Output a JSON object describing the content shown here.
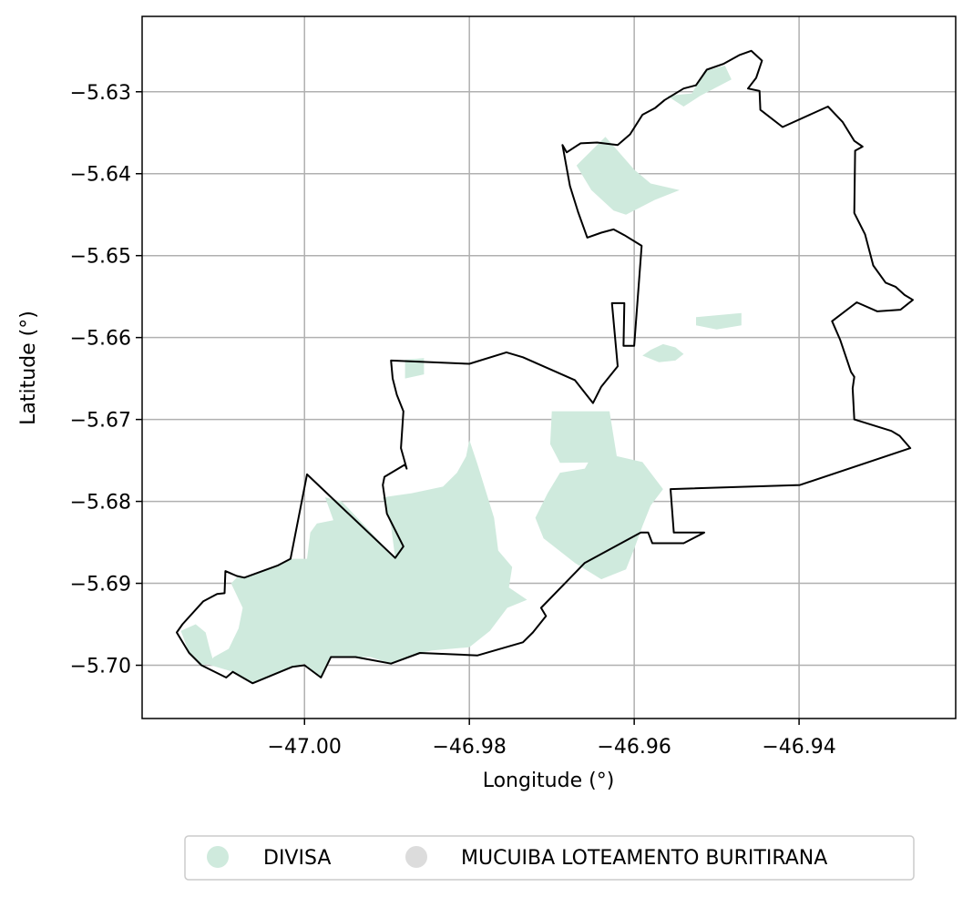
{
  "map": {
    "xlabel": "Longitude (°)",
    "ylabel": "Latitude (°)",
    "x_ticks": [
      {
        "value": -47.0,
        "label": "−47.00"
      },
      {
        "value": -46.98,
        "label": "−46.98"
      },
      {
        "value": -46.96,
        "label": "−46.96"
      },
      {
        "value": -46.94,
        "label": "−46.94"
      }
    ],
    "y_ticks": [
      {
        "value": -5.63,
        "label": "−5.63"
      },
      {
        "value": -5.64,
        "label": "−5.64"
      },
      {
        "value": -5.65,
        "label": "−5.65"
      },
      {
        "value": -5.66,
        "label": "−5.66"
      },
      {
        "value": -5.67,
        "label": "−5.67"
      },
      {
        "value": -5.68,
        "label": "−5.68"
      },
      {
        "value": -5.69,
        "label": "−5.69"
      },
      {
        "value": -5.7,
        "label": "−5.70"
      }
    ],
    "xlim": [
      -47.0197,
      -46.921
    ],
    "ylim": [
      -5.7065,
      -5.6208
    ],
    "grid": true,
    "legend": {
      "placement": "bottom-center",
      "entries": [
        {
          "label": "DIVISA",
          "color": "#cfeadd"
        },
        {
          "label": "MUCUIBA LOTEAMENTO BURITIRANA",
          "color": "#dcdcdc"
        }
      ]
    },
    "colors": {
      "boundary": "#000000",
      "divisa_fill": "#cfeadd",
      "grid": "#b0b0b0"
    },
    "boundary": [
      [
        -46.9458,
        -5.625
      ],
      [
        -46.9445,
        -5.6262
      ],
      [
        -46.9452,
        -5.6283
      ],
      [
        -46.9462,
        -5.6296
      ],
      [
        -46.9448,
        -5.6299
      ],
      [
        -46.9447,
        -5.6322
      ],
      [
        -46.942,
        -5.6343
      ],
      [
        -46.9365,
        -5.6318
      ],
      [
        -46.9347,
        -5.6337
      ],
      [
        -46.9333,
        -5.636
      ],
      [
        -46.9323,
        -5.6367
      ],
      [
        -46.9332,
        -5.6372
      ],
      [
        -46.9333,
        -5.6448
      ],
      [
        -46.932,
        -5.6474
      ],
      [
        -46.931,
        -5.6512
      ],
      [
        -46.9295,
        -5.6533
      ],
      [
        -46.9283,
        -5.6538
      ],
      [
        -46.9272,
        -5.6548
      ],
      [
        -46.9262,
        -5.6554
      ],
      [
        -46.9277,
        -5.6566
      ],
      [
        -46.9305,
        -5.6568
      ],
      [
        -46.933,
        -5.6557
      ],
      [
        -46.936,
        -5.658
      ],
      [
        -46.935,
        -5.6603
      ],
      [
        -46.9337,
        -5.6642
      ],
      [
        -46.9333,
        -5.6648
      ],
      [
        -46.9335,
        -5.6662
      ],
      [
        -46.9333,
        -5.67
      ],
      [
        -46.9288,
        -5.6714
      ],
      [
        -46.9278,
        -5.672
      ],
      [
        -46.9265,
        -5.6735
      ],
      [
        -46.9399,
        -5.678
      ],
      [
        -46.9556,
        -5.6785
      ],
      [
        -46.9552,
        -5.6838
      ],
      [
        -46.9515,
        -5.6838
      ],
      [
        -46.954,
        -5.6851
      ],
      [
        -46.9578,
        -5.6851
      ],
      [
        -46.9583,
        -5.6838
      ],
      [
        -46.9592,
        -5.6838
      ],
      [
        -46.966,
        -5.6875
      ],
      [
        -46.9713,
        -5.693
      ],
      [
        -46.9707,
        -5.694
      ],
      [
        -46.9723,
        -5.696
      ],
      [
        -46.9735,
        -5.6972
      ],
      [
        -46.979,
        -5.6988
      ],
      [
        -46.986,
        -5.6985
      ],
      [
        -46.9895,
        -5.6998
      ],
      [
        -46.9938,
        -5.699
      ],
      [
        -46.9968,
        -5.699
      ],
      [
        -46.998,
        -5.7015
      ],
      [
        -47.0,
        -5.7
      ],
      [
        -47.0015,
        -5.7002
      ],
      [
        -47.0063,
        -5.7022
      ],
      [
        -47.0087,
        -5.7008
      ],
      [
        -47.0095,
        -5.7015
      ],
      [
        -47.0125,
        -5.7
      ],
      [
        -47.014,
        -5.6985
      ],
      [
        -47.0155,
        -5.696
      ],
      [
        -47.0148,
        -5.695
      ],
      [
        -47.0123,
        -5.6922
      ],
      [
        -47.0106,
        -5.6913
      ],
      [
        -47.0097,
        -5.6912
      ],
      [
        -47.0096,
        -5.6885
      ],
      [
        -47.0082,
        -5.6891
      ],
      [
        -47.0073,
        -5.6893
      ],
      [
        -47.0032,
        -5.6878
      ],
      [
        -47.0017,
        -5.687
      ],
      [
        -46.9997,
        -5.6767
      ],
      [
        -46.989,
        -5.6869
      ],
      [
        -46.988,
        -5.6855
      ],
      [
        -46.99,
        -5.6815
      ],
      [
        -46.9905,
        -5.678
      ],
      [
        -46.9903,
        -5.677
      ],
      [
        -46.9878,
        -5.6755
      ],
      [
        -46.9876,
        -5.676
      ],
      [
        -46.9883,
        -5.6735
      ],
      [
        -46.988,
        -5.669
      ],
      [
        -46.9888,
        -5.667
      ],
      [
        -46.9893,
        -5.665
      ],
      [
        -46.9895,
        -5.6628
      ],
      [
        -46.98,
        -5.6632
      ],
      [
        -46.9755,
        -5.6618
      ],
      [
        -46.9735,
        -5.6624
      ],
      [
        -46.9672,
        -5.6652
      ],
      [
        -46.965,
        -5.668
      ],
      [
        -46.964,
        -5.666
      ],
      [
        -46.962,
        -5.6635
      ],
      [
        -46.9627,
        -5.6558
      ],
      [
        -46.9612,
        -5.6558
      ],
      [
        -46.9613,
        -5.661
      ],
      [
        -46.96,
        -5.661
      ],
      [
        -46.9591,
        -5.6488
      ],
      [
        -46.9612,
        -5.6475
      ],
      [
        -46.9625,
        -5.6468
      ],
      [
        -46.964,
        -5.6472
      ],
      [
        -46.9657,
        -5.6478
      ],
      [
        -46.9668,
        -5.6447
      ],
      [
        -46.9678,
        -5.6415
      ],
      [
        -46.9687,
        -5.6365
      ],
      [
        -46.9682,
        -5.6374
      ],
      [
        -46.9665,
        -5.6363
      ],
      [
        -46.9645,
        -5.6362
      ],
      [
        -46.962,
        -5.6365
      ],
      [
        -46.9605,
        -5.6352
      ],
      [
        -46.959,
        -5.6328
      ],
      [
        -46.9575,
        -5.632
      ],
      [
        -46.9563,
        -5.631
      ],
      [
        -46.954,
        -5.6296
      ],
      [
        -46.9525,
        -5.6292
      ],
      [
        -46.9512,
        -5.6273
      ],
      [
        -46.9492,
        -5.6266
      ],
      [
        -46.9472,
        -5.6255
      ],
      [
        -46.9458,
        -5.625
      ]
    ],
    "divisa": [
      [
        [
          -47.0117,
          -5.6999
        ],
        [
          -47.0087,
          -5.7008
        ],
        [
          -47.0063,
          -5.7022
        ],
        [
          -47.0015,
          -5.7002
        ],
        [
          -47.0,
          -5.6998
        ],
        [
          -46.998,
          -5.7015
        ],
        [
          -46.9968,
          -5.699
        ],
        [
          -46.992,
          -5.699
        ],
        [
          -46.9895,
          -5.6998
        ],
        [
          -46.986,
          -5.6985
        ],
        [
          -46.9845,
          -5.6982
        ],
        [
          -46.98,
          -5.6978
        ],
        [
          -46.9775,
          -5.6958
        ],
        [
          -46.9754,
          -5.693
        ],
        [
          -46.973,
          -5.692
        ],
        [
          -46.9752,
          -5.6905
        ],
        [
          -46.9748,
          -5.688
        ],
        [
          -46.9765,
          -5.686
        ],
        [
          -46.977,
          -5.682
        ],
        [
          -46.979,
          -5.6755
        ],
        [
          -46.98,
          -5.6725
        ],
        [
          -46.9804,
          -5.6745
        ],
        [
          -46.9815,
          -5.6765
        ],
        [
          -46.9832,
          -5.6782
        ],
        [
          -46.987,
          -5.679
        ],
        [
          -46.9905,
          -5.6795
        ],
        [
          -46.9895,
          -5.683
        ],
        [
          -46.989,
          -5.6869
        ],
        [
          -46.9955,
          -5.68
        ],
        [
          -46.9975,
          -5.6795
        ],
        [
          -46.9965,
          -5.6823
        ],
        [
          -46.9985,
          -5.6827
        ],
        [
          -46.9993,
          -5.6838
        ],
        [
          -46.9997,
          -5.687
        ],
        [
          -47.0017,
          -5.687
        ],
        [
          -47.0032,
          -5.6878
        ],
        [
          -47.0073,
          -5.6893
        ],
        [
          -47.0082,
          -5.6893
        ],
        [
          -47.0089,
          -5.69
        ],
        [
          -47.0075,
          -5.693
        ],
        [
          -47.008,
          -5.6955
        ],
        [
          -47.0092,
          -5.698
        ],
        [
          -47.011,
          -5.699
        ]
      ],
      [
        [
          -47.015,
          -5.6958
        ],
        [
          -47.014,
          -5.6985
        ],
        [
          -47.0125,
          -5.7
        ],
        [
          -47.011,
          -5.6997
        ],
        [
          -47.0115,
          -5.698
        ],
        [
          -47.012,
          -5.696
        ],
        [
          -47.0132,
          -5.695
        ]
      ],
      [
        [
          -46.971,
          -5.6845
        ],
        [
          -46.9672,
          -5.6875
        ],
        [
          -46.964,
          -5.6895
        ],
        [
          -46.961,
          -5.6883
        ],
        [
          -46.96,
          -5.6858
        ],
        [
          -46.959,
          -5.683
        ],
        [
          -46.958,
          -5.6805
        ],
        [
          -46.9565,
          -5.6785
        ],
        [
          -46.959,
          -5.6752
        ],
        [
          -46.962,
          -5.6745
        ],
        [
          -46.965,
          -5.6742
        ],
        [
          -46.966,
          -5.676
        ],
        [
          -46.969,
          -5.6765
        ],
        [
          -46.9705,
          -5.679
        ],
        [
          -46.972,
          -5.682
        ]
      ],
      [
        [
          -46.963,
          -5.669
        ],
        [
          -46.962,
          -5.6752
        ],
        [
          -46.969,
          -5.6753
        ],
        [
          -46.9702,
          -5.673
        ],
        [
          -46.97,
          -5.669
        ]
      ],
      [
        [
          -46.967,
          -5.639
        ],
        [
          -46.9652,
          -5.642
        ],
        [
          -46.9625,
          -5.6445
        ],
        [
          -46.961,
          -5.645
        ],
        [
          -46.9575,
          -5.6432
        ],
        [
          -46.9545,
          -5.642
        ],
        [
          -46.958,
          -5.6412
        ],
        [
          -46.96,
          -5.6395
        ],
        [
          -46.962,
          -5.6372
        ],
        [
          -46.9635,
          -5.6355
        ]
      ],
      [
        [
          -46.956,
          -5.6305
        ],
        [
          -46.953,
          -5.6302
        ],
        [
          -46.9515,
          -5.6275
        ],
        [
          -46.949,
          -5.6268
        ],
        [
          -46.9482,
          -5.6285
        ],
        [
          -46.952,
          -5.6305
        ],
        [
          -46.954,
          -5.6318
        ]
      ],
      [
        [
          -46.9525,
          -5.6575
        ],
        [
          -46.947,
          -5.657
        ],
        [
          -46.947,
          -5.6585
        ],
        [
          -46.95,
          -5.659
        ],
        [
          -46.9525,
          -5.6585
        ]
      ],
      [
        [
          -46.954,
          -5.662
        ],
        [
          -46.955,
          -5.6612
        ],
        [
          -46.9565,
          -5.6608
        ],
        [
          -46.958,
          -5.6615
        ],
        [
          -46.959,
          -5.6622
        ],
        [
          -46.957,
          -5.663
        ],
        [
          -46.955,
          -5.6628
        ]
      ],
      [
        [
          -46.9855,
          -5.6625
        ],
        [
          -46.9878,
          -5.6627
        ],
        [
          -46.9878,
          -5.665
        ],
        [
          -46.9855,
          -5.6645
        ]
      ]
    ]
  }
}
